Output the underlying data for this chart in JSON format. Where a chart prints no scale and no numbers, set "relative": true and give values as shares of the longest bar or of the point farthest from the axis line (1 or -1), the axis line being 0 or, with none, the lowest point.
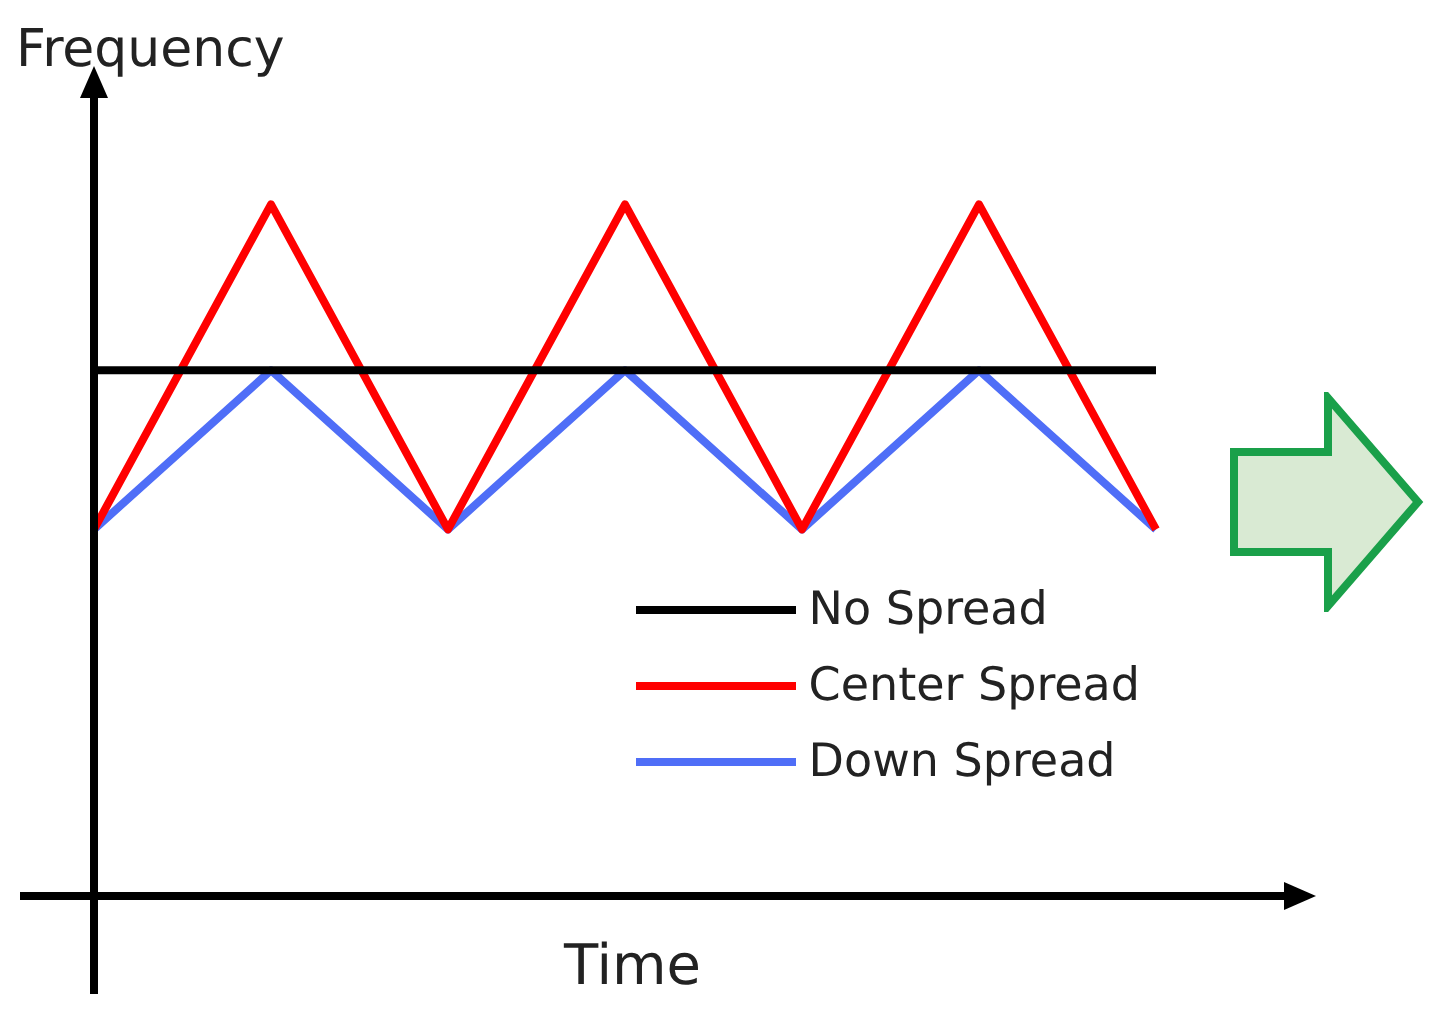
{
  "chart_data": {
    "type": "line",
    "relative": true,
    "xlabel": "Time",
    "ylabel": "Frequency",
    "categories": [
      null,
      null,
      null,
      null,
      null,
      null,
      null
    ],
    "series": [
      {
        "name": "No Spread",
        "color": "#000000",
        "values": [
          0.76,
          0.76,
          0.76,
          0.76,
          0.76,
          0.76,
          0.76
        ]
      },
      {
        "name": "Center Spread",
        "color": "#ff0000",
        "values": [
          0.53,
          1,
          0.53,
          1,
          0.53,
          1,
          0.53
        ]
      },
      {
        "name": "Down Spread",
        "color": "#4f6ef7",
        "values": [
          0.53,
          0.76,
          0.53,
          0.76,
          0.53,
          0.76,
          0.53
        ]
      }
    ],
    "legend": "bottom right",
    "marker": "none",
    "line_style": "solid"
  }
}
